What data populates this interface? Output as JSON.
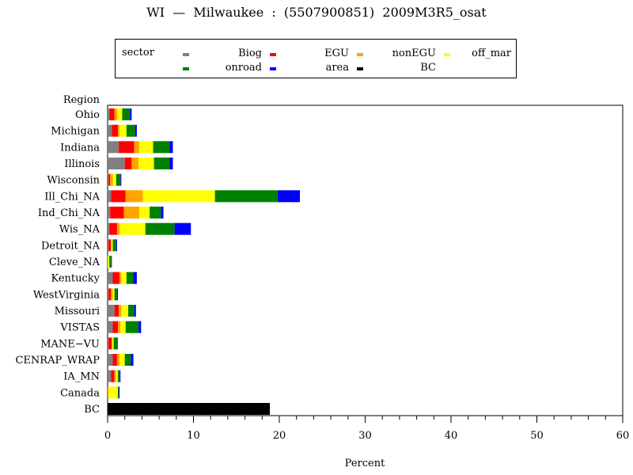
{
  "title": "WI  —  Milwaukee  :  (5507900851)  2009M3R5_osat",
  "chart_data": {
    "type": "bar",
    "orientation": "horizontal",
    "stacked": true,
    "title": "WI  —  Milwaukee  :  (5507900851)  2009M3R5_osat",
    "xlabel": "Percent",
    "ylabel": "Region",
    "xlim": [
      0,
      60
    ],
    "xticks": [
      0,
      10,
      20,
      30,
      40,
      50,
      60
    ],
    "grid": false,
    "legend_title": "sector",
    "legend_position": "top",
    "categories": [
      "Ohio",
      "Michigan",
      "Indiana",
      "Illinois",
      "Wisconsin",
      "Ill_Chi_NA",
      "Ind_Chi_NA",
      "Wis_NA",
      "Detroit_NA",
      "Cleve_NA",
      "Kentucky",
      "WestVirginia",
      "Missouri",
      "VISTAS",
      "MANE−VU",
      "CENRAP_WRAP",
      "IA_MN",
      "Canada",
      "BC"
    ],
    "series": [
      {
        "name": "Biog",
        "color": "#808080",
        "values": [
          0.2,
          0.5,
          1.3,
          2.0,
          0.1,
          0.4,
          0.3,
          0.2,
          0.1,
          0.0,
          0.6,
          0.1,
          0.8,
          0.6,
          0.1,
          0.6,
          0.4,
          0.0,
          0.0
        ]
      },
      {
        "name": "EGU",
        "color": "#ff0000",
        "values": [
          0.6,
          0.7,
          1.8,
          0.8,
          0.2,
          1.7,
          1.6,
          0.9,
          0.3,
          0.0,
          0.8,
          0.3,
          0.5,
          0.6,
          0.4,
          0.5,
          0.4,
          0.0,
          0.0
        ]
      },
      {
        "name": "nonEGU",
        "color": "#ffa500",
        "values": [
          0.3,
          0.2,
          0.6,
          0.8,
          0.3,
          2.0,
          1.8,
          0.3,
          0.0,
          0.0,
          0.2,
          0.2,
          0.3,
          0.3,
          0.0,
          0.3,
          0.2,
          0.1,
          0.0
        ]
      },
      {
        "name": "off_mar",
        "color": "#ffff00",
        "values": [
          0.6,
          0.8,
          1.6,
          1.8,
          0.4,
          8.4,
          1.2,
          3.0,
          0.2,
          0.2,
          0.6,
          0.2,
          0.8,
          0.6,
          0.2,
          0.6,
          0.2,
          1.1,
          0.0
        ]
      },
      {
        "name": "onroad",
        "color": "#008000",
        "values": [
          0.9,
          1.0,
          1.9,
          1.8,
          0.5,
          7.3,
          1.3,
          3.4,
          0.4,
          0.3,
          0.8,
          0.3,
          0.7,
          1.5,
          0.5,
          0.7,
          0.2,
          0.1,
          0.0
        ]
      },
      {
        "name": "area",
        "color": "#0000ff",
        "values": [
          0.2,
          0.2,
          0.4,
          0.4,
          0.1,
          2.6,
          0.3,
          1.9,
          0.1,
          0.0,
          0.4,
          0.1,
          0.2,
          0.3,
          0.0,
          0.3,
          0.1,
          0.1,
          0.0
        ]
      },
      {
        "name": "BC",
        "color": "#000000",
        "values": [
          0,
          0,
          0,
          0,
          0,
          0,
          0,
          0,
          0,
          0,
          0,
          0,
          0,
          0,
          0,
          0,
          0,
          0,
          18.9
        ]
      }
    ]
  }
}
